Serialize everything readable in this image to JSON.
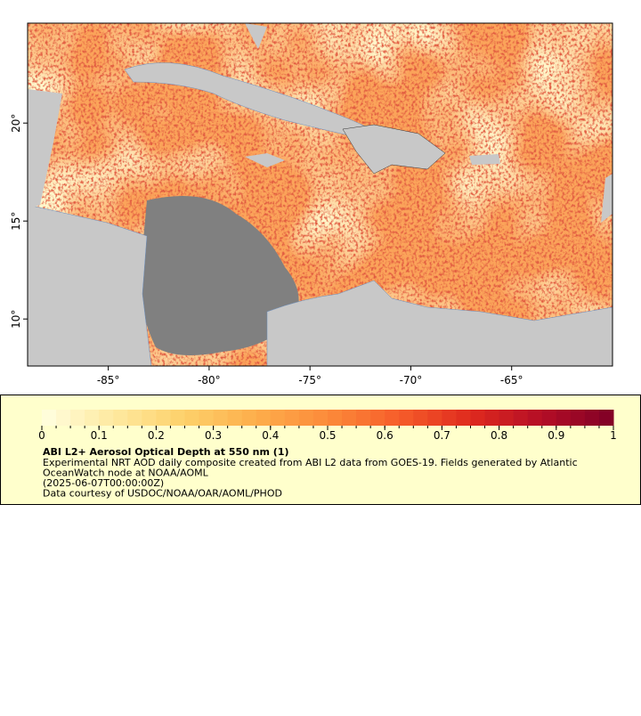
{
  "map": {
    "xlim": [
      -89,
      -60
    ],
    "ylim": [
      7.6,
      25.1
    ],
    "xticks": [
      {
        "value": -85,
        "label": "-85°"
      },
      {
        "value": -80,
        "label": "-80°"
      },
      {
        "value": -75,
        "label": "-75°"
      },
      {
        "value": -70,
        "label": "-70°"
      },
      {
        "value": -65,
        "label": "-65°"
      }
    ],
    "yticks": [
      {
        "value": 10,
        "label": "10°"
      },
      {
        "value": 15,
        "label": "15°"
      },
      {
        "value": 20,
        "label": "20°"
      }
    ]
  },
  "colorbar": {
    "range": [
      0,
      1
    ],
    "ticks": [
      0,
      0.1,
      0.2,
      0.3,
      0.4,
      0.5,
      0.6,
      0.7,
      0.8,
      0.9,
      1
    ],
    "colors": [
      "#ffffe0",
      "#fee9a0",
      "#fdd06a",
      "#fdae4b",
      "#fc8a3a",
      "#f65d2a",
      "#df2a1e",
      "#b40d26",
      "#7f0026"
    ]
  },
  "legend": {
    "title": "ABI L2+ Aerosol Optical Depth at 550 nm (1)",
    "lines": [
      "Experimental NRT AOD daily composite created from ABI L2 data from GOES-19. Fields generated by Atlantic",
      "OceanWatch node at NOAA/AOML",
      "(2025-06-07T00:00:00Z)",
      "Data courtesy of USDOC/NOAA/OAR/AOML/PHOD"
    ]
  }
}
